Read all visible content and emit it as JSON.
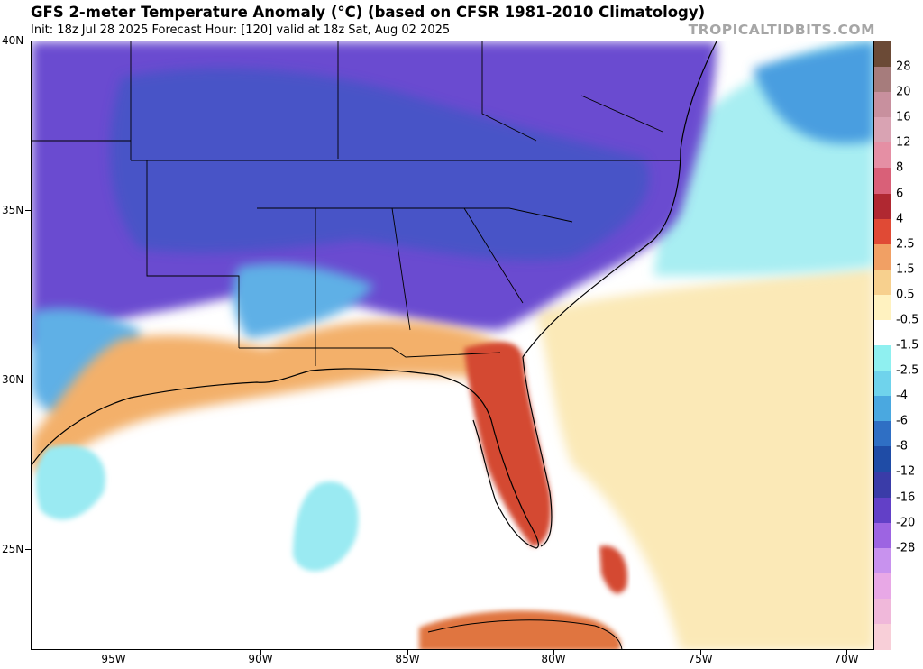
{
  "header": {
    "title": "GFS 2-meter Temperature Anomaly (°C) (based on CFSR 1981-2010 Climatology)",
    "subtitle": "Init: 18z Jul 28 2025   Forecast Hour: [120]   valid at 18z Sat, Aug 02 2025",
    "brand": "TROPICALTIDBITS.COM"
  },
  "axes": {
    "lat_labels": [
      "40N",
      "35N",
      "30N",
      "25N"
    ],
    "lon_labels": [
      "95W",
      "90W",
      "85W",
      "80W",
      "75W",
      "70W"
    ]
  },
  "colorbar": {
    "labels": [
      "28",
      "20",
      "16",
      "12",
      "8",
      "6",
      "4",
      "2.5",
      "1.5",
      "0.5",
      "-0.5",
      "-1.5",
      "-2.5",
      "-4",
      "-6",
      "-8",
      "-12",
      "-16",
      "-20",
      "-28"
    ],
    "colors": [
      "#6b4a36",
      "#a67c7c",
      "#c8909e",
      "#d9a3b3",
      "#e58fa4",
      "#d96078",
      "#b02831",
      "#e04a35",
      "#f1a064",
      "#f7d08e",
      "#fff2c0",
      "#ffffff",
      "#8ff0f0",
      "#6fd3ec",
      "#4aa8e0",
      "#2f6fc4",
      "#1f4ca6",
      "#3a3ca8",
      "#6240c7",
      "#9d64e2",
      "#c892ee",
      "#e8a8e6",
      "#f0b8da",
      "#f8cfd8"
    ]
  }
}
